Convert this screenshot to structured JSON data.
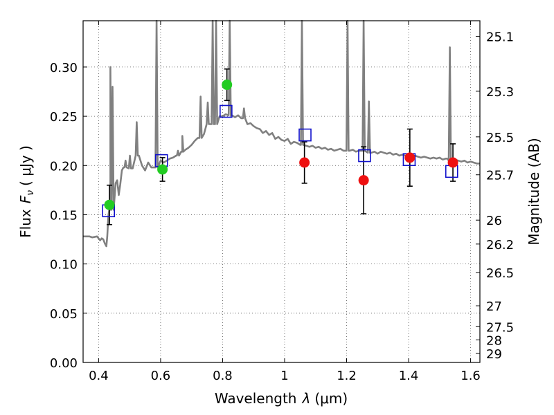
{
  "chart_data": {
    "type": "scatter",
    "xlabel_prefix": "Wavelength",
    "xlabel_var": "λ",
    "xlabel_unit": "(μm)",
    "ylabel_prefix": "Flux",
    "ylabel_var": "F",
    "ylabel_sub": "ν",
    "ylabel_unit": "( μJy )",
    "y2label": "Magnitude (AB)",
    "xlim": [
      0.35,
      1.63
    ],
    "ylim": [
      0.0,
      0.347
    ],
    "grid": true,
    "x_ticks": [
      {
        "v": 0.4,
        "label": "0.4"
      },
      {
        "v": 0.6,
        "label": "0.6"
      },
      {
        "v": 0.8,
        "label": "0.8"
      },
      {
        "v": 1.0,
        "label": "1"
      },
      {
        "v": 1.2,
        "label": "1.2"
      },
      {
        "v": 1.4,
        "label": "1.4"
      },
      {
        "v": 1.6,
        "label": "1.6"
      }
    ],
    "y_ticks": [
      {
        "v": 0.0,
        "label": "0.00"
      },
      {
        "v": 0.05,
        "label": "0.05"
      },
      {
        "v": 0.1,
        "label": "0.10"
      },
      {
        "v": 0.15,
        "label": "0.15"
      },
      {
        "v": 0.2,
        "label": "0.20"
      },
      {
        "v": 0.25,
        "label": "0.25"
      },
      {
        "v": 0.3,
        "label": "0.30"
      }
    ],
    "mag_ticks": [
      {
        "v": 25.1,
        "label": "25.1"
      },
      {
        "v": 25.3,
        "label": "25.3"
      },
      {
        "v": 25.5,
        "label": "25.5"
      },
      {
        "v": 25.7,
        "label": "25.7"
      },
      {
        "v": 26.0,
        "label": "26"
      },
      {
        "v": 26.2,
        "label": "26.2"
      },
      {
        "v": 26.5,
        "label": "26.5"
      },
      {
        "v": 27.0,
        "label": "27"
      },
      {
        "v": 27.5,
        "label": "27.5"
      },
      {
        "v": 28.0,
        "label": "28"
      },
      {
        "v": 29.0,
        "label": "29"
      }
    ],
    "green_points": [
      {
        "x": 0.435,
        "y": 0.16,
        "err": 0.02
      },
      {
        "x": 0.606,
        "y": 0.196,
        "err": 0.012
      },
      {
        "x": 0.814,
        "y": 0.282,
        "err": 0.016
      }
    ],
    "red_points": [
      {
        "x": 1.064,
        "y": 0.203,
        "err": 0.021
      },
      {
        "x": 1.255,
        "y": 0.185,
        "err": 0.034
      },
      {
        "x": 1.404,
        "y": 0.208,
        "err": 0.029
      },
      {
        "x": 1.543,
        "y": 0.203,
        "err": 0.019
      }
    ],
    "model_squares": [
      {
        "x": 0.432,
        "y": 0.154
      },
      {
        "x": 0.603,
        "y": 0.205
      },
      {
        "x": 0.811,
        "y": 0.255
      },
      {
        "x": 1.066,
        "y": 0.231
      },
      {
        "x": 1.258,
        "y": 0.21
      },
      {
        "x": 1.402,
        "y": 0.206
      },
      {
        "x": 1.539,
        "y": 0.194
      }
    ],
    "colors": {
      "green": "#22cc22",
      "red": "#ee1111",
      "square": "#1111cc",
      "spectrum": "#808080",
      "grid": "#555555"
    },
    "spectrum": [
      [
        0.35,
        0.128
      ],
      [
        0.37,
        0.128
      ],
      [
        0.38,
        0.127
      ],
      [
        0.395,
        0.128
      ],
      [
        0.405,
        0.124
      ],
      [
        0.41,
        0.126
      ],
      [
        0.415,
        0.125
      ],
      [
        0.42,
        0.121
      ],
      [
        0.425,
        0.118
      ],
      [
        0.428,
        0.128
      ],
      [
        0.43,
        0.14
      ],
      [
        0.432,
        0.15
      ],
      [
        0.435,
        0.152
      ],
      [
        0.438,
        0.155
      ],
      [
        0.44,
        0.162
      ],
      [
        0.443,
        0.17
      ],
      [
        0.446,
        0.175
      ],
      [
        0.45,
        0.172
      ],
      [
        0.455,
        0.182
      ],
      [
        0.46,
        0.185
      ],
      [
        0.465,
        0.17
      ],
      [
        0.47,
        0.181
      ],
      [
        0.475,
        0.195
      ],
      [
        0.48,
        0.198
      ],
      [
        0.49,
        0.19
      ],
      [
        0.5,
        0.192
      ],
      [
        0.51,
        0.197
      ],
      [
        0.52,
        0.198
      ],
      [
        0.525,
        0.2
      ],
      [
        0.53,
        0.21
      ],
      [
        0.54,
        0.2
      ],
      [
        0.55,
        0.195
      ],
      [
        0.56,
        0.203
      ],
      [
        0.57,
        0.198
      ],
      [
        0.58,
        0.2
      ],
      [
        0.59,
        0.205
      ],
      [
        0.6,
        0.205
      ],
      [
        0.61,
        0.203
      ],
      [
        0.62,
        0.205
      ],
      [
        0.63,
        0.207
      ],
      [
        0.64,
        0.208
      ],
      [
        0.65,
        0.21
      ],
      [
        0.66,
        0.213
      ],
      [
        0.67,
        0.214
      ],
      [
        0.68,
        0.216
      ],
      [
        0.69,
        0.218
      ],
      [
        0.7,
        0.221
      ],
      [
        0.71,
        0.225
      ],
      [
        0.72,
        0.228
      ],
      [
        0.73,
        0.228
      ],
      [
        0.74,
        0.232
      ],
      [
        0.75,
        0.238
      ],
      [
        0.76,
        0.242
      ],
      [
        0.77,
        0.245
      ],
      [
        0.78,
        0.247
      ],
      [
        0.79,
        0.25
      ],
      [
        0.8,
        0.25
      ],
      [
        0.81,
        0.252
      ],
      [
        0.82,
        0.251
      ],
      [
        0.83,
        0.251
      ],
      [
        0.84,
        0.249
      ],
      [
        0.85,
        0.251
      ],
      [
        0.86,
        0.248
      ],
      [
        0.87,
        0.247
      ],
      [
        0.88,
        0.242
      ],
      [
        0.89,
        0.243
      ],
      [
        0.9,
        0.24
      ],
      [
        0.91,
        0.238
      ],
      [
        0.92,
        0.237
      ],
      [
        0.93,
        0.233
      ],
      [
        0.94,
        0.235
      ],
      [
        0.95,
        0.231
      ],
      [
        0.96,
        0.233
      ],
      [
        0.97,
        0.227
      ],
      [
        0.98,
        0.229
      ],
      [
        0.99,
        0.226
      ],
      [
        1.0,
        0.225
      ],
      [
        1.01,
        0.227
      ],
      [
        1.02,
        0.222
      ],
      [
        1.03,
        0.224
      ],
      [
        1.04,
        0.223
      ],
      [
        1.05,
        0.221
      ],
      [
        1.06,
        0.222
      ],
      [
        1.07,
        0.22
      ],
      [
        1.08,
        0.219
      ],
      [
        1.09,
        0.22
      ],
      [
        1.1,
        0.218
      ],
      [
        1.11,
        0.219
      ],
      [
        1.12,
        0.217
      ],
      [
        1.13,
        0.218
      ],
      [
        1.14,
        0.216
      ],
      [
        1.15,
        0.217
      ],
      [
        1.16,
        0.215
      ],
      [
        1.17,
        0.216
      ],
      [
        1.18,
        0.217
      ],
      [
        1.19,
        0.215
      ],
      [
        1.2,
        0.216
      ],
      [
        1.21,
        0.215
      ],
      [
        1.22,
        0.216
      ],
      [
        1.23,
        0.214
      ],
      [
        1.24,
        0.215
      ],
      [
        1.25,
        0.213
      ],
      [
        1.26,
        0.214
      ],
      [
        1.27,
        0.215
      ],
      [
        1.28,
        0.213
      ],
      [
        1.29,
        0.214
      ],
      [
        1.3,
        0.212
      ],
      [
        1.31,
        0.214
      ],
      [
        1.32,
        0.213
      ],
      [
        1.33,
        0.212
      ],
      [
        1.34,
        0.213
      ],
      [
        1.35,
        0.211
      ],
      [
        1.36,
        0.212
      ],
      [
        1.37,
        0.21
      ],
      [
        1.38,
        0.211
      ],
      [
        1.39,
        0.21
      ],
      [
        1.4,
        0.211
      ],
      [
        1.41,
        0.209
      ],
      [
        1.42,
        0.21
      ],
      [
        1.43,
        0.209
      ],
      [
        1.44,
        0.208
      ],
      [
        1.45,
        0.209
      ],
      [
        1.46,
        0.208
      ],
      [
        1.47,
        0.207
      ],
      [
        1.48,
        0.208
      ],
      [
        1.49,
        0.207
      ],
      [
        1.5,
        0.208
      ],
      [
        1.51,
        0.206
      ],
      [
        1.52,
        0.207
      ],
      [
        1.53,
        0.206
      ],
      [
        1.54,
        0.205
      ],
      [
        1.55,
        0.206
      ],
      [
        1.56,
        0.205
      ],
      [
        1.57,
        0.204
      ],
      [
        1.58,
        0.205
      ],
      [
        1.59,
        0.203
      ],
      [
        1.6,
        0.204
      ],
      [
        1.61,
        0.203
      ],
      [
        1.62,
        0.202
      ],
      [
        1.63,
        0.202
      ]
    ],
    "emission_lines": [
      [
        0.438,
        0.3
      ],
      [
        0.445,
        0.28
      ],
      [
        0.487,
        0.205
      ],
      [
        0.501,
        0.21
      ],
      [
        0.523,
        0.244
      ],
      [
        0.585,
        0.35
      ],
      [
        0.587,
        0.35
      ],
      [
        0.656,
        0.215
      ],
      [
        0.67,
        0.23
      ],
      [
        0.729,
        0.27
      ],
      [
        0.752,
        0.264
      ],
      [
        0.768,
        0.35
      ],
      [
        0.779,
        0.35
      ],
      [
        0.823,
        0.35
      ],
      [
        0.869,
        0.258
      ],
      [
        1.056,
        0.35
      ],
      [
        1.203,
        0.35
      ],
      [
        1.255,
        0.35
      ],
      [
        1.272,
        0.265
      ],
      [
        1.528,
        0.24
      ],
      [
        1.533,
        0.32
      ]
    ]
  }
}
